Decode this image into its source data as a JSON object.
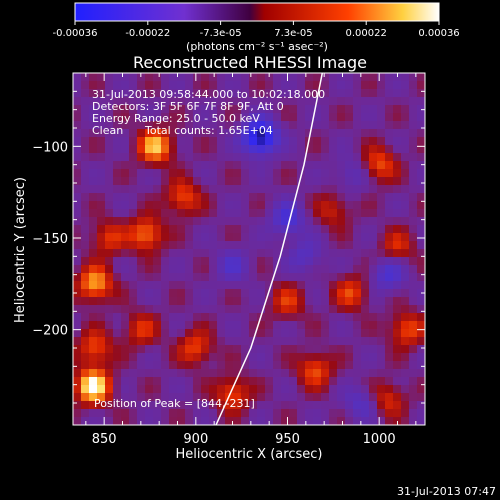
{
  "chart_data": {
    "type": "heatmap",
    "title": "Reconstructed RHESSI Image",
    "xlabel": "Heliocentric X (arcsec)",
    "ylabel": "Heliocentric Y (arcsec)",
    "xlim": [
      833,
      1025
    ],
    "ylim": [
      -252,
      -60
    ],
    "x_ticks": [
      850,
      900,
      950,
      1000
    ],
    "y_ticks": [
      -100,
      -150,
      -200
    ],
    "colorbar": {
      "ticks": [
        "-0.00036",
        "-0.00022",
        "-7.3e-05",
        "7.3e-05",
        "0.00022",
        "0.00036"
      ],
      "range": [
        -0.00036,
        0.00036
      ],
      "unit": "(photons cm⁻² s⁻¹ asec⁻²)",
      "colors": [
        "#2020ff",
        "#7030d0",
        "#a00000",
        "#ff4000",
        "#ffd040",
        "#ffffff"
      ]
    },
    "annotations": {
      "time_range": "31-Jul-2013 09:58:44.000 to 10:02:18.000",
      "detectors": "Detectors: 3F 5F 6F 7F 8F 9F, Att 0",
      "energy_range": "Energy Range: 25.0 - 50.0 keV",
      "method": "Clean",
      "counts": "Total counts: 1.65E+04",
      "peak": "Position of Peak = [844,-231]"
    },
    "peak": {
      "x": 844,
      "y": -231
    },
    "limb": [
      [
        969,
        -60
      ],
      [
        959,
        -110
      ],
      [
        946,
        -160
      ],
      [
        930,
        -210
      ],
      [
        911,
        -252
      ]
    ],
    "hotspots": [
      {
        "x": 844,
        "y": -231,
        "v": 0.00036
      },
      {
        "x": 878,
        "y": -100,
        "v": 0.00028
      },
      {
        "x": 873,
        "y": -148,
        "v": 0.00022
      },
      {
        "x": 893,
        "y": -128,
        "v": 0.00018
      },
      {
        "x": 845,
        "y": -175,
        "v": 0.00026
      },
      {
        "x": 852,
        "y": -150,
        "v": 0.00015
      },
      {
        "x": 845,
        "y": -210,
        "v": 0.00018
      },
      {
        "x": 900,
        "y": -210,
        "v": 0.00017
      },
      {
        "x": 870,
        "y": -200,
        "v": 0.00014
      },
      {
        "x": 920,
        "y": -235,
        "v": 0.00018
      },
      {
        "x": 950,
        "y": -185,
        "v": 0.00014
      },
      {
        "x": 965,
        "y": -222,
        "v": 0.00018
      },
      {
        "x": 985,
        "y": -180,
        "v": 0.00016
      },
      {
        "x": 1000,
        "y": -110,
        "v": 0.00018
      },
      {
        "x": 1015,
        "y": -200,
        "v": 0.00018
      },
      {
        "x": 1010,
        "y": -155,
        "v": 0.00013
      },
      {
        "x": 1005,
        "y": -238,
        "v": 0.00014
      },
      {
        "x": 975,
        "y": -135,
        "v": 0.00012
      },
      {
        "x": 935,
        "y": -95,
        "v": -0.00036
      },
      {
        "x": 950,
        "y": -140,
        "v": -0.00018
      },
      {
        "x": 960,
        "y": -160,
        "v": -0.00012
      },
      {
        "x": 985,
        "y": -115,
        "v": -0.0001
      },
      {
        "x": 1005,
        "y": -170,
        "v": -0.00016
      },
      {
        "x": 920,
        "y": -165,
        "v": -0.00012
      },
      {
        "x": 990,
        "y": -240,
        "v": -0.00012
      }
    ]
  },
  "footer": {
    "timestamp": "31-Jul-2013 07:47"
  }
}
